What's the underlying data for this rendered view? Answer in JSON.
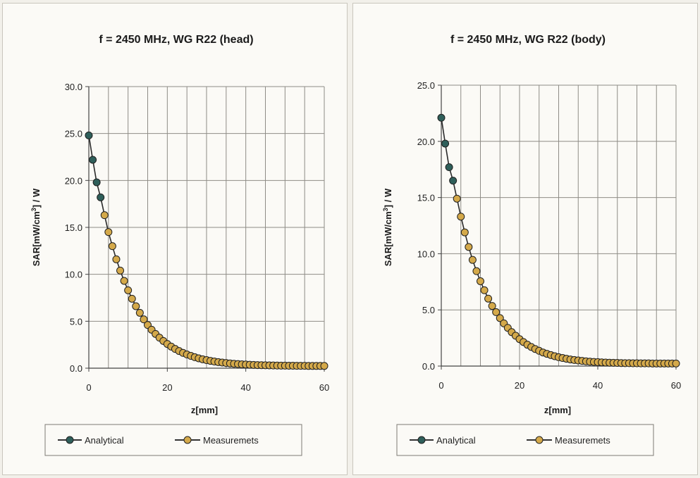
{
  "chart_data": [
    {
      "type": "line",
      "title": "f = 2450 MHz, WG R22 (head)",
      "xlabel": "z[mm]",
      "ylabel": "SAR[mW/cm^3] / W",
      "ylabel_main": "SAR[mW/cm",
      "ylabel_sup": "3",
      "ylabel_tail": "] / W",
      "xlim": [
        0,
        60
      ],
      "ylim": [
        0,
        30
      ],
      "xticks": [
        "0",
        "20",
        "40",
        "60"
      ],
      "yticks": [
        "0.0",
        "5.0",
        "10.0",
        "15.0",
        "20.0",
        "25.0",
        "30.0"
      ],
      "grid": true,
      "legend_position": "bottom",
      "series": [
        {
          "name": "Analytical",
          "color": "#2f5f5a",
          "x": [
            0,
            1,
            2,
            3
          ],
          "y": [
            24.8,
            22.2,
            19.8,
            18.2
          ]
        },
        {
          "name": "Measuremets",
          "color": "#d4a94a",
          "x": [
            4,
            5,
            6,
            7,
            8,
            9,
            10,
            11,
            12,
            13,
            14,
            15,
            16,
            17,
            18,
            19,
            20,
            21,
            22,
            23,
            24,
            25,
            26,
            27,
            28,
            29,
            30,
            31,
            32,
            33,
            34,
            35,
            36,
            37,
            38,
            39,
            40,
            41,
            42,
            43,
            44,
            45,
            46,
            47,
            48,
            49,
            50,
            51,
            52,
            53,
            54,
            55,
            56,
            57,
            58,
            59,
            60
          ],
          "y": [
            16.3,
            14.5,
            13.0,
            11.6,
            10.4,
            9.3,
            8.3,
            7.4,
            6.6,
            5.9,
            5.2,
            4.6,
            4.1,
            3.65,
            3.25,
            2.9,
            2.58,
            2.3,
            2.05,
            1.83,
            1.63,
            1.46,
            1.31,
            1.17,
            1.05,
            0.95,
            0.86,
            0.78,
            0.71,
            0.65,
            0.6,
            0.55,
            0.51,
            0.47,
            0.44,
            0.41,
            0.39,
            0.37,
            0.35,
            0.33,
            0.32,
            0.31,
            0.3,
            0.29,
            0.28,
            0.27,
            0.27,
            0.26,
            0.26,
            0.25,
            0.25,
            0.25,
            0.24,
            0.24,
            0.24,
            0.24,
            0.24
          ]
        }
      ]
    },
    {
      "type": "line",
      "title": "f = 2450 MHz, WG R22 (body)",
      "xlabel": "z[mm]",
      "ylabel": "SAR[mW/cm^3] / W",
      "ylabel_main": "SAR[mW/cm",
      "ylabel_sup": "3",
      "ylabel_tail": "] / W",
      "xlim": [
        0,
        60
      ],
      "ylim": [
        0,
        25
      ],
      "xticks": [
        "0",
        "20",
        "40",
        "60"
      ],
      "yticks": [
        "0.0",
        "5.0",
        "10.0",
        "15.0",
        "20.0",
        "25.0"
      ],
      "grid": true,
      "legend_position": "bottom",
      "series": [
        {
          "name": "Analytical",
          "color": "#2f5f5a",
          "x": [
            0,
            1,
            2,
            3
          ],
          "y": [
            22.1,
            19.8,
            17.7,
            16.5
          ]
        },
        {
          "name": "Measuremets",
          "color": "#d4a94a",
          "x": [
            4,
            5,
            6,
            7,
            8,
            9,
            10,
            11,
            12,
            13,
            14,
            15,
            16,
            17,
            18,
            19,
            20,
            21,
            22,
            23,
            24,
            25,
            26,
            27,
            28,
            29,
            30,
            31,
            32,
            33,
            34,
            35,
            36,
            37,
            38,
            39,
            40,
            41,
            42,
            43,
            44,
            45,
            46,
            47,
            48,
            49,
            50,
            51,
            52,
            53,
            54,
            55,
            56,
            57,
            58,
            59,
            60
          ],
          "y": [
            14.9,
            13.3,
            11.9,
            10.6,
            9.45,
            8.45,
            7.55,
            6.75,
            6.0,
            5.35,
            4.8,
            4.27,
            3.8,
            3.4,
            3.02,
            2.7,
            2.4,
            2.14,
            1.9,
            1.7,
            1.52,
            1.36,
            1.21,
            1.09,
            0.98,
            0.88,
            0.79,
            0.72,
            0.65,
            0.59,
            0.54,
            0.5,
            0.46,
            0.42,
            0.39,
            0.37,
            0.35,
            0.33,
            0.31,
            0.3,
            0.29,
            0.28,
            0.27,
            0.26,
            0.26,
            0.25,
            0.25,
            0.24,
            0.24,
            0.24,
            0.23,
            0.23,
            0.23,
            0.23,
            0.23,
            0.23,
            0.23
          ]
        }
      ]
    }
  ]
}
